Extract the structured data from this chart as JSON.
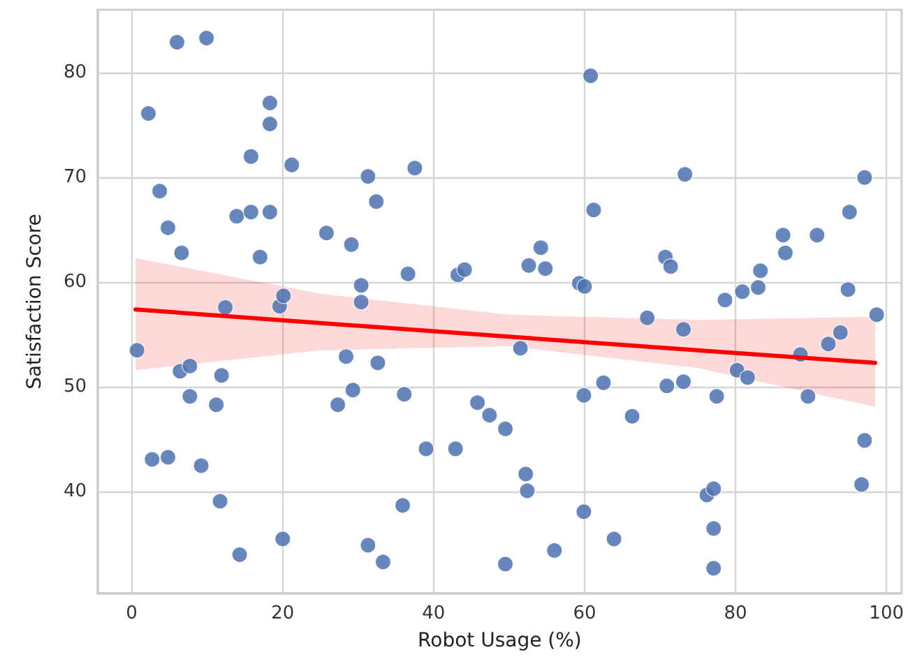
{
  "chart_data": {
    "type": "scatter",
    "xlabel": "Robot Usage (%)",
    "ylabel": "Satisfaction Score",
    "xlim": [
      -4.5,
      102
    ],
    "ylim": [
      30.3,
      86
    ],
    "xticks": [
      0,
      20,
      40,
      60,
      80,
      100
    ],
    "yticks": [
      40,
      50,
      60,
      70,
      80
    ],
    "grid": true,
    "marker": "circle",
    "series": [
      {
        "color": "#4c72b0",
        "x": [
          0.7,
          2.2,
          2.7,
          3.7,
          4.8,
          4.8,
          6.0,
          6.4,
          6.6,
          7.7,
          7.7,
          9.2,
          9.9,
          11.2,
          11.9,
          11.7,
          12.4,
          14.3,
          13.9,
          15.8,
          15.8,
          17.0,
          18.3,
          18.3,
          18.3,
          19.6,
          20.1,
          20.0,
          21.2,
          25.8,
          27.3,
          28.4,
          29.1,
          29.3,
          30.4,
          30.4,
          31.3,
          31.3,
          32.4,
          32.6,
          33.3,
          36.1,
          35.9,
          36.6,
          37.5,
          39.0,
          42.9,
          43.2,
          44.1,
          45.8,
          47.4,
          49.5,
          49.5,
          51.5,
          52.2,
          52.4,
          52.6,
          54.2,
          54.8,
          56.0,
          59.3,
          60.0,
          59.9,
          59.9,
          60.8,
          61.2,
          62.5,
          63.9,
          66.3,
          68.3,
          70.7,
          70.9,
          71.4,
          73.1,
          73.1,
          73.3,
          76.2,
          77.1,
          77.1,
          77.1,
          77.5,
          78.6,
          80.2,
          80.9,
          81.6,
          83.0,
          83.3,
          86.3,
          86.6,
          88.6,
          89.6,
          90.8,
          92.3,
          93.9,
          94.9,
          95.1,
          96.7,
          97.1,
          97.1,
          98.7
        ],
        "values": [
          53.5,
          76.1,
          43.1,
          68.7,
          65.2,
          43.3,
          82.9,
          51.5,
          62.8,
          52.0,
          49.1,
          42.5,
          83.3,
          48.3,
          51.1,
          39.1,
          57.6,
          34.0,
          66.3,
          72.0,
          66.7,
          62.4,
          77.1,
          75.1,
          66.7,
          57.7,
          58.7,
          35.5,
          71.2,
          64.7,
          48.3,
          52.9,
          63.6,
          49.7,
          59.7,
          58.1,
          70.1,
          34.9,
          67.7,
          52.3,
          33.3,
          49.3,
          38.7,
          60.8,
          70.9,
          44.1,
          44.1,
          60.7,
          61.2,
          48.5,
          47.3,
          46.0,
          33.1,
          53.7,
          41.7,
          40.1,
          61.6,
          63.3,
          61.3,
          34.4,
          59.9,
          59.6,
          49.2,
          38.1,
          79.7,
          66.9,
          50.4,
          35.5,
          47.2,
          56.6,
          62.4,
          50.1,
          61.5,
          55.5,
          50.5,
          70.3,
          39.7,
          40.3,
          36.5,
          32.7,
          49.1,
          58.3,
          51.6,
          59.1,
          50.9,
          59.5,
          61.1,
          64.5,
          62.8,
          53.1,
          49.1,
          64.5,
          54.1,
          55.2,
          59.3,
          66.7,
          40.7,
          44.9,
          70.0,
          56.9
        ]
      },
      {
        "type": "line",
        "color": "#ff0000",
        "marker": "none",
        "x": [
          0.5,
          25,
          50,
          75,
          98.5
        ],
        "values": [
          57.4,
          56.1,
          54.8,
          53.5,
          52.3
        ],
        "lower": [
          51.6,
          53.5,
          53.9,
          51.8,
          48.1
        ],
        "upper": [
          62.3,
          58.9,
          56.9,
          56.4,
          56.7
        ]
      }
    ]
  }
}
